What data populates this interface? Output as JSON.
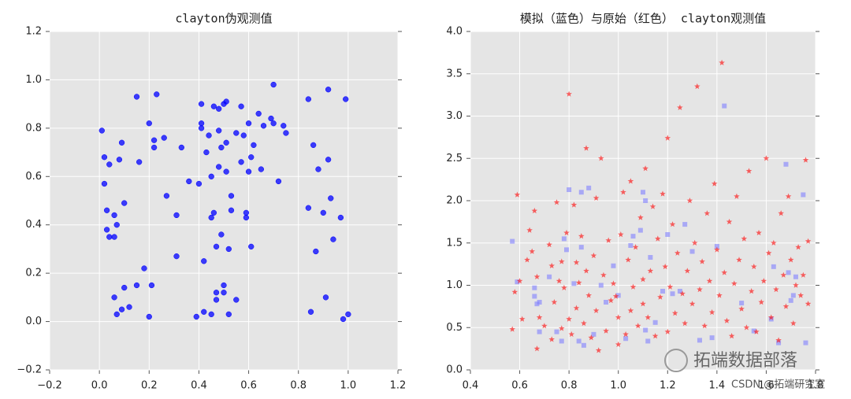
{
  "chart_data": [
    {
      "type": "scatter",
      "title": "clayton伪观测值",
      "xlim": [
        -0.2,
        1.2
      ],
      "ylim": [
        -0.2,
        1.2
      ],
      "xticks": [
        {
          "value": -0.2,
          "label": "−0.2"
        },
        {
          "value": 0,
          "label": "0.0"
        },
        0.2,
        0.4,
        0.6,
        0.8,
        {
          "value": 1,
          "label": "1.0"
        },
        1.2
      ],
      "yticks": [
        {
          "value": -0.2,
          "label": "−0.2"
        },
        {
          "value": 0,
          "label": "0.0"
        },
        0.2,
        0.4,
        0.6,
        0.8,
        {
          "value": 1,
          "label": "1.0"
        },
        1.2
      ],
      "grid": true,
      "series": [
        {
          "marker": "circle",
          "color": "#0000ff",
          "x": [
            0.01,
            0.02,
            0.02,
            0.03,
            0.03,
            0.04,
            0.04,
            0.06,
            0.06,
            0.06,
            0.07,
            0.07,
            0.08,
            0.09,
            0.09,
            0.1,
            0.1,
            0.12,
            0.15,
            0.15,
            0.16,
            0.18,
            0.2,
            0.2,
            0.21,
            0.22,
            0.22,
            0.23,
            0.26,
            0.27,
            0.31,
            0.31,
            0.33,
            0.36,
            0.39,
            0.4,
            0.41,
            0.41,
            0.41,
            0.42,
            0.42,
            0.43,
            0.44,
            0.45,
            0.45,
            0.45,
            0.46,
            0.46,
            0.47,
            0.47,
            0.47,
            0.48,
            0.48,
            0.48,
            0.49,
            0.49,
            0.5,
            0.5,
            0.5,
            0.51,
            0.51,
            0.51,
            0.52,
            0.52,
            0.53,
            0.53,
            0.55,
            0.55,
            0.57,
            0.57,
            0.58,
            0.59,
            0.59,
            0.6,
            0.6,
            0.61,
            0.61,
            0.62,
            0.64,
            0.65,
            0.66,
            0.69,
            0.7,
            0.7,
            0.72,
            0.74,
            0.75,
            0.84,
            0.84,
            0.85,
            0.86,
            0.87,
            0.88,
            0.9,
            0.91,
            0.92,
            0.92,
            0.93,
            0.94,
            0.97,
            0.98,
            0.99,
            1.0
          ],
          "values": [
            0.79,
            0.57,
            0.68,
            0.46,
            0.38,
            0.65,
            0.35,
            0.44,
            0.1,
            0.35,
            0.4,
            0.03,
            0.67,
            0.74,
            0.05,
            0.49,
            0.14,
            0.06,
            0.93,
            0.15,
            0.66,
            0.22,
            0.82,
            0.02,
            0.15,
            0.75,
            0.72,
            0.94,
            0.76,
            0.52,
            0.44,
            0.27,
            0.72,
            0.58,
            0.02,
            0.57,
            0.8,
            0.82,
            0.9,
            0.25,
            0.04,
            0.7,
            0.77,
            0.43,
            0.6,
            0.03,
            0.45,
            0.89,
            0.12,
            0.31,
            0.09,
            0.88,
            0.79,
            0.64,
            0.36,
            0.72,
            0.9,
            0.15,
            0.12,
            0.91,
            0.74,
            0.62,
            0.3,
            0.03,
            0.52,
            0.46,
            0.09,
            0.78,
            0.89,
            0.66,
            0.77,
            0.45,
            0.43,
            0.82,
            0.62,
            0.31,
            0.68,
            0.73,
            0.86,
            0.63,
            0.81,
            0.84,
            0.82,
            0.98,
            0.58,
            0.81,
            0.78,
            0.92,
            0.47,
            0.04,
            0.73,
            0.29,
            0.63,
            0.45,
            0.1,
            0.96,
            0.67,
            0.51,
            0.34,
            0.43,
            0.01,
            0.92,
            0.03
          ]
        }
      ]
    },
    {
      "type": "scatter",
      "title": "模拟（蓝色）与原始（红色） clayton观测值",
      "xlim": [
        0.4,
        1.8
      ],
      "ylim": [
        0,
        4
      ],
      "xticks": [
        0.4,
        0.6,
        0.8,
        {
          "value": 1,
          "label": "1.0"
        },
        1.2,
        1.4,
        1.6,
        1.8
      ],
      "yticks": [
        {
          "value": 0,
          "label": "0.0"
        },
        0.5,
        {
          "value": 1,
          "label": "1.0"
        },
        1.5,
        {
          "value": 2,
          "label": "2.0"
        },
        2.5,
        {
          "value": 3,
          "label": "3.0"
        },
        3.5,
        {
          "value": 4,
          "label": "4.0"
        }
      ],
      "grid": true,
      "series": [
        {
          "marker": "square",
          "color": "#7f7fff",
          "x": [
            0.57,
            0.59,
            0.66,
            0.66,
            0.67,
            0.68,
            0.68,
            0.72,
            0.75,
            0.77,
            0.78,
            0.79,
            0.8,
            0.82,
            0.84,
            0.85,
            0.85,
            0.86,
            0.88,
            0.9,
            0.93,
            0.95,
            0.98,
            1.0,
            1.03,
            1.05,
            1.06,
            1.09,
            1.1,
            1.11,
            1.11,
            1.12,
            1.13,
            1.15,
            1.18,
            1.2,
            1.22,
            1.25,
            1.27,
            1.3,
            1.33,
            1.38,
            1.4,
            1.43,
            1.5,
            1.55,
            1.62,
            1.63,
            1.65,
            1.68,
            1.69,
            1.7,
            1.71,
            1.72,
            1.75,
            1.76
          ],
          "values": [
            1.52,
            1.04,
            0.97,
            0.87,
            0.78,
            0.8,
            0.45,
            1.1,
            0.45,
            0.34,
            1.55,
            1.42,
            2.13,
            1.02,
            0.34,
            2.1,
            1.45,
            0.29,
            2.15,
            0.42,
            1.0,
            0.8,
            1.23,
            0.88,
            0.37,
            1.47,
            1.58,
            1.65,
            2.1,
            2.0,
            0.47,
            0.34,
            1.33,
            0.56,
            0.93,
            1.6,
            0.9,
            0.93,
            1.72,
            1.4,
            0.35,
            0.38,
            1.46,
            3.12,
            0.79,
            0.46,
            0.6,
            1.22,
            0.32,
            2.43,
            1.15,
            0.82,
            0.88,
            1.1,
            2.07,
            0.32
          ]
        },
        {
          "marker": "star",
          "color": "#ff0000",
          "x": [
            0.57,
            0.58,
            0.59,
            0.6,
            0.61,
            0.63,
            0.64,
            0.65,
            0.66,
            0.67,
            0.67,
            0.68,
            0.7,
            0.72,
            0.73,
            0.73,
            0.74,
            0.75,
            0.76,
            0.77,
            0.77,
            0.78,
            0.79,
            0.8,
            0.8,
            0.81,
            0.82,
            0.83,
            0.83,
            0.84,
            0.85,
            0.86,
            0.87,
            0.87,
            0.88,
            0.89,
            0.9,
            0.91,
            0.91,
            0.92,
            0.93,
            0.94,
            0.95,
            0.96,
            0.97,
            0.98,
            0.99,
            1.0,
            1.0,
            1.01,
            1.02,
            1.03,
            1.04,
            1.05,
            1.05,
            1.06,
            1.07,
            1.08,
            1.09,
            1.1,
            1.1,
            1.11,
            1.12,
            1.13,
            1.14,
            1.15,
            1.16,
            1.17,
            1.18,
            1.19,
            1.2,
            1.2,
            1.21,
            1.22,
            1.23,
            1.24,
            1.25,
            1.26,
            1.27,
            1.28,
            1.29,
            1.3,
            1.31,
            1.32,
            1.33,
            1.34,
            1.35,
            1.36,
            1.37,
            1.38,
            1.39,
            1.4,
            1.41,
            1.42,
            1.43,
            1.44,
            1.45,
            1.46,
            1.47,
            1.48,
            1.49,
            1.5,
            1.51,
            1.52,
            1.53,
            1.54,
            1.55,
            1.56,
            1.57,
            1.58,
            1.59,
            1.6,
            1.61,
            1.62,
            1.63,
            1.64,
            1.65,
            1.66,
            1.67,
            1.68,
            1.69,
            1.7,
            1.71,
            1.72,
            1.73,
            1.74,
            1.75,
            1.76,
            1.77,
            1.77
          ],
          "values": [
            0.48,
            0.92,
            2.07,
            1.05,
            0.6,
            1.3,
            1.65,
            1.4,
            1.88,
            0.25,
            1.1,
            0.62,
            0.52,
            1.48,
            1.23,
            0.36,
            0.8,
            1.98,
            1.05,
            0.49,
            1.28,
            0.97,
            1.62,
            3.26,
            0.6,
            0.42,
            1.95,
            1.27,
            0.73,
            1.03,
            1.58,
            0.55,
            2.62,
            1.17,
            0.88,
            0.38,
            1.35,
            2.03,
            0.7,
            0.23,
            2.5,
            1.12,
            0.46,
            1.53,
            0.82,
            1.02,
            0.87,
            0.3,
            0.62,
            1.6,
            2.1,
            0.42,
            1.3,
            0.7,
            2.23,
            0.98,
            1.45,
            0.52,
            1.8,
            0.78,
            1.07,
            2.38,
            0.62,
            1.17,
            1.93,
            0.4,
            1.55,
            0.86,
            2.08,
            1.22,
            2.74,
            0.45,
            0.98,
            1.72,
            0.67,
            1.38,
            3.1,
            0.9,
            0.55,
            1.17,
            2.0,
            0.78,
            1.5,
            3.35,
            0.95,
            1.28,
            0.52,
            1.85,
            1.05,
            0.68,
            2.2,
            1.42,
            0.88,
            3.63,
            1.15,
            0.58,
            1.75,
            0.4,
            1.02,
            2.05,
            1.3,
            0.72,
            1.55,
            0.5,
            2.35,
            0.93,
            1.22,
            0.45,
            1.62,
            0.8,
            1.05,
            2.5,
            1.38,
            0.62,
            1.5,
            0.95,
            0.35,
            1.85,
            1.12,
            0.75,
            2.05,
            1.3,
            0.55,
            1.0,
            1.45,
            0.88,
            1.12,
            2.48,
            1.52,
            0.78
          ]
        }
      ]
    }
  ],
  "watermarks": [
    "拓端数据部落",
    "CSDN @拓端研究室"
  ]
}
